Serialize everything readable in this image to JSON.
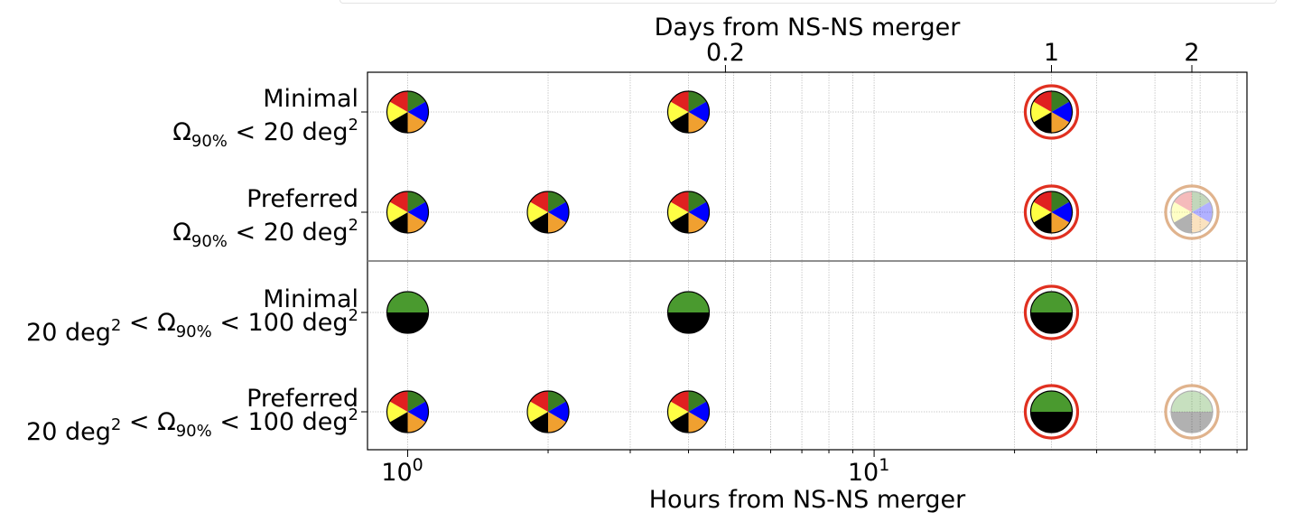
{
  "chart_data": {
    "type": "scatter",
    "x_axis": {
      "label": "Hours from NS-NS merger",
      "scale": "log",
      "range": [
        0.82,
        63
      ],
      "ticks": [
        {
          "value": 1,
          "base": "10",
          "exp": "0"
        },
        {
          "value": 10,
          "base": "10",
          "exp": "1"
        }
      ]
    },
    "x2_axis": {
      "label": "Days from NS-NS merger",
      "ticks": [
        {
          "value_hours": 4.8,
          "label": "0.2"
        },
        {
          "value_hours": 24,
          "label": "1"
        },
        {
          "value_hours": 48,
          "label": "2"
        }
      ]
    },
    "grid": true,
    "rows": [
      {
        "title": "Minimal",
        "condition": {
          "pre": "",
          "omega": "Ω",
          "sub": "90%",
          "post": " < 20 deg",
          "sup": "2"
        }
      },
      {
        "title": "Preferred",
        "condition": {
          "pre": "",
          "omega": "Ω",
          "sub": "90%",
          "post": " < 20 deg",
          "sup": "2"
        }
      },
      {
        "title": "Minimal",
        "condition": {
          "pre": "20 deg",
          "pre_sup": "2",
          "omega": " < Ω",
          "sub": "90%",
          "post": " < 100 deg",
          "sup": "2"
        }
      },
      {
        "title": "Preferred",
        "condition": {
          "pre": "20 deg",
          "pre_sup": "2",
          "omega": " < Ω",
          "sub": "90%",
          "post": " < 100 deg",
          "sup": "2"
        }
      }
    ],
    "colors": {
      "six_band": [
        "#3a7d22",
        "#0000ff",
        "#f0a030",
        "#000000",
        "#ffff44",
        "#e02020"
      ],
      "two_band": [
        "#4a9a2f",
        "#000000"
      ],
      "ring_strong": "#e03020",
      "ring_faded": "#d8a070"
    },
    "points": [
      {
        "row": 0,
        "hours": 1,
        "style": "six",
        "ring": "none",
        "faded": false
      },
      {
        "row": 0,
        "hours": 4,
        "style": "six",
        "ring": "none",
        "faded": false
      },
      {
        "row": 0,
        "hours": 24,
        "style": "six",
        "ring": "strong",
        "faded": false
      },
      {
        "row": 1,
        "hours": 1,
        "style": "six",
        "ring": "none",
        "faded": false
      },
      {
        "row": 1,
        "hours": 2,
        "style": "six",
        "ring": "none",
        "faded": false
      },
      {
        "row": 1,
        "hours": 4,
        "style": "six",
        "ring": "none",
        "faded": false
      },
      {
        "row": 1,
        "hours": 24,
        "style": "six",
        "ring": "strong",
        "faded": false
      },
      {
        "row": 1,
        "hours": 48,
        "style": "six",
        "ring": "faded",
        "faded": true
      },
      {
        "row": 2,
        "hours": 1,
        "style": "two",
        "ring": "none",
        "faded": false
      },
      {
        "row": 2,
        "hours": 4,
        "style": "two",
        "ring": "none",
        "faded": false
      },
      {
        "row": 2,
        "hours": 24,
        "style": "two",
        "ring": "strong",
        "faded": false
      },
      {
        "row": 3,
        "hours": 1,
        "style": "six",
        "ring": "none",
        "faded": false
      },
      {
        "row": 3,
        "hours": 2,
        "style": "six",
        "ring": "none",
        "faded": false
      },
      {
        "row": 3,
        "hours": 4,
        "style": "six",
        "ring": "none",
        "faded": false
      },
      {
        "row": 3,
        "hours": 24,
        "style": "two",
        "ring": "strong",
        "faded": false
      },
      {
        "row": 3,
        "hours": 48,
        "style": "two",
        "ring": "faded",
        "faded": true
      }
    ]
  }
}
